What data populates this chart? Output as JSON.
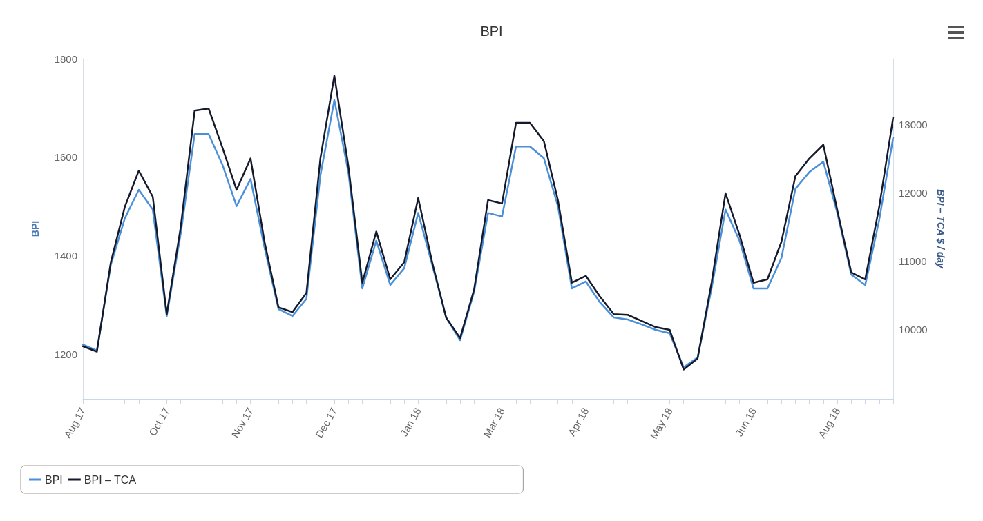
{
  "chart_data": {
    "type": "line",
    "title": "BPI",
    "ylabel": "BPI",
    "y2label": "BPI – TCA $ / day",
    "categories": [
      "Aug 17",
      null,
      null,
      null,
      null,
      null,
      "Oct 17",
      null,
      null,
      null,
      null,
      null,
      "Nov 17",
      null,
      null,
      null,
      null,
      null,
      "Dec 17",
      null,
      null,
      null,
      null,
      null,
      "Jan 18",
      null,
      null,
      null,
      null,
      null,
      "Mar 18",
      null,
      null,
      null,
      null,
      null,
      "Apr 18",
      null,
      null,
      null,
      null,
      null,
      "May 18",
      null,
      null,
      null,
      null,
      null,
      "Jun 18",
      null,
      null,
      null,
      null,
      null,
      "Aug 18",
      null,
      null,
      null,
      null
    ],
    "series": [
      {
        "name": "BPI",
        "color": "#4a8fd8",
        "values": [
          1220,
          1208,
          1382,
          1476,
          1534,
          1494,
          1278,
          1445,
          1647,
          1647,
          1584,
          1501,
          1556,
          1417,
          1292,
          1278,
          1313,
          1563,
          1716,
          1570,
          1334,
          1431,
          1341,
          1375,
          1487,
          1382,
          1275,
          1229,
          1327,
          1487,
          1480,
          1622,
          1622,
          1598,
          1501,
          1334,
          1348,
          1306,
          1275,
          1271,
          1261,
          1250,
          1243,
          1174,
          1194,
          1334,
          1494,
          1431,
          1334,
          1334,
          1396,
          1536,
          1570,
          1591,
          1487,
          1362,
          1341,
          1473,
          1640
        ]
      },
      {
        "name": "BPI – TCA",
        "color": "#141a2b",
        "axis": "y2",
        "values": [
          9750,
          9670,
          10980,
          11790,
          12320,
          11940,
          10220,
          11490,
          13200,
          13230,
          12650,
          12040,
          12500,
          11280,
          10320,
          10250,
          10530,
          12500,
          13710,
          12390,
          10680,
          11430,
          10730,
          10980,
          11920,
          10980,
          10170,
          9870,
          10580,
          11890,
          11840,
          13020,
          13020,
          12750,
          11890,
          10680,
          10780,
          10480,
          10220,
          10210,
          10120,
          10030,
          9990,
          9410,
          9570,
          10680,
          11990,
          11380,
          10680,
          10730,
          11280,
          12240,
          12500,
          12700,
          11740,
          10830,
          10730,
          11790,
          13100
        ]
      }
    ],
    "ylim": [
      1110,
      1800
    ],
    "yticks": [
      1200,
      1400,
      1600,
      1800
    ],
    "y2lim": [
      8980,
      13960
    ],
    "y2ticks": [
      10000,
      11000,
      12000,
      13000
    ],
    "grid": false,
    "legend": "bottom left",
    "marker": "none",
    "line_style": "solid"
  }
}
